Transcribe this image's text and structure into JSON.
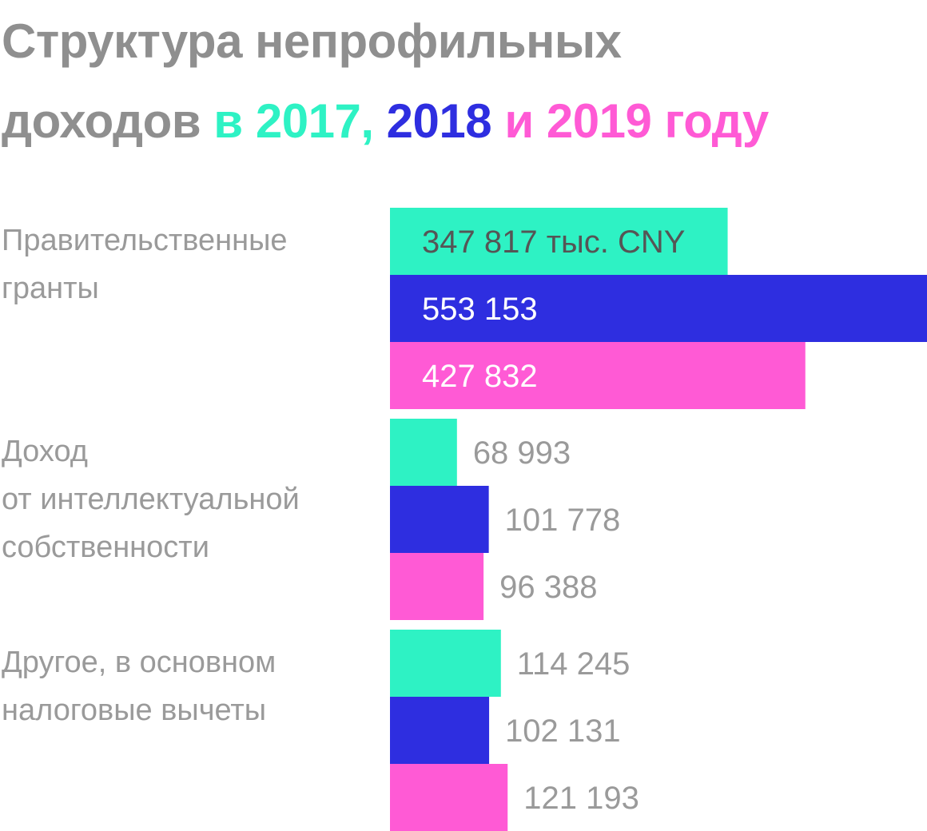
{
  "chart_data": {
    "type": "bar",
    "orientation": "horizontal",
    "title": {
      "line1": "Структура непрофильных",
      "line2_prefix": "доходов",
      "line2_year1": "в 2017,",
      "line2_year2": "2018",
      "line2_year3": "и 2019 году"
    },
    "categories": [
      {
        "label_lines": [
          "Правительственные",
          "гранты"
        ]
      },
      {
        "label_lines": [
          "Доход",
          "от интеллектуальной",
          "собственности"
        ]
      },
      {
        "label_lines": [
          "Другое, в основном",
          "налоговые вычеты"
        ]
      }
    ],
    "series": [
      {
        "year": "2017",
        "color": "#2ef2c4",
        "values": [
          347817,
          68993,
          114245
        ]
      },
      {
        "year": "2018",
        "color": "#2e2ee0",
        "values": [
          553153,
          101778,
          102131
        ]
      },
      {
        "year": "2019",
        "color": "#ff5ad5",
        "values": [
          427832,
          96388,
          121193
        ]
      }
    ],
    "value_labels": [
      [
        "347 817 тыс. CNY",
        "68 993",
        "114 245"
      ],
      [
        "553 153",
        "101 778",
        "102 131"
      ],
      [
        "427 832",
        "96 388",
        "121 193"
      ]
    ],
    "unit": "тыс. CNY",
    "title_color": "#8f8f8f",
    "label_color": "#9a9a9a",
    "xlim": [
      0,
      553153
    ],
    "grid": false
  }
}
